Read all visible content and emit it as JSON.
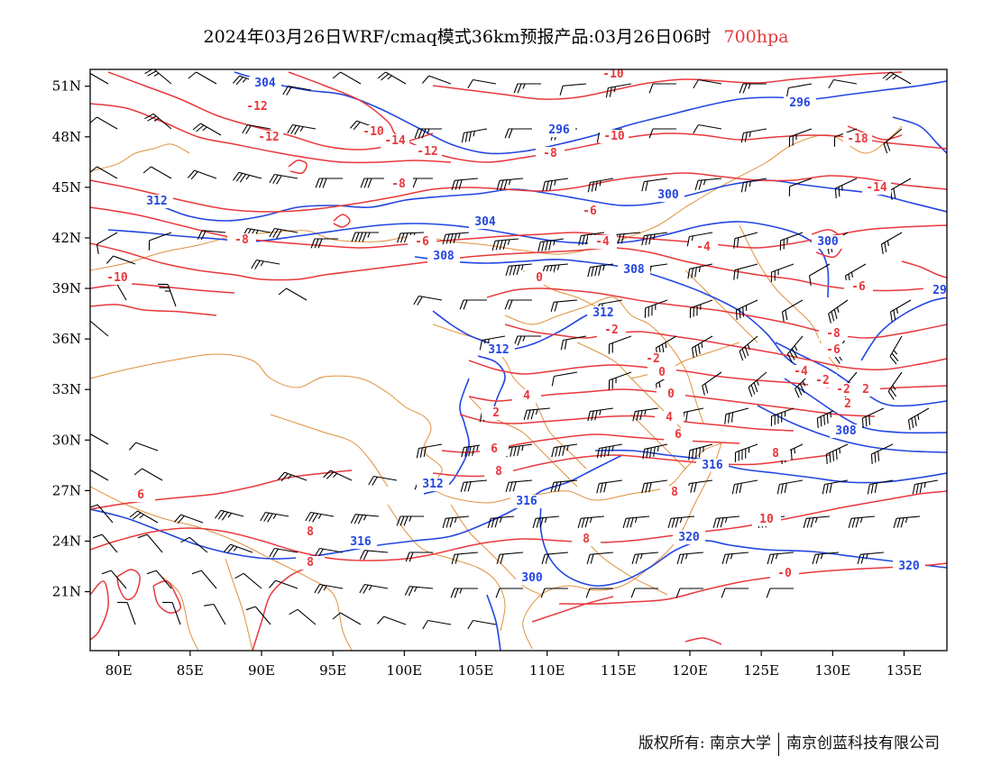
{
  "title": {
    "main": "2024年03月26日WRF/cmaq模式36km预报产品:03月26日06时",
    "level": "700hpa"
  },
  "axes": {
    "lon_labels": [
      "80E",
      "85E",
      "90E",
      "95E",
      "100E",
      "105E",
      "110E",
      "115E",
      "120E",
      "125E",
      "130E",
      "135E"
    ],
    "lat_labels": [
      "51N",
      "48N",
      "45N",
      "42N",
      "39N",
      "36N",
      "33N",
      "30N",
      "27N",
      "24N",
      "21N"
    ]
  },
  "map": {
    "lon_range": [
      78,
      138
    ],
    "lat_range": [
      17.5,
      52
    ],
    "colors": {
      "temperature": "#e8383c",
      "height": "#2346e0",
      "boundary": "#e0903c",
      "wind": "#000000"
    }
  },
  "temperature_labels": [
    "-12",
    "-12",
    "-10",
    "-14",
    "-12",
    "-10",
    "-10",
    "-8",
    "-18",
    "-14",
    "-8",
    "-6",
    "-8",
    "-6",
    "-4",
    "-4",
    "-6",
    "-10",
    "0",
    "-2",
    "-2",
    "-8",
    "-6",
    "-4",
    "-2",
    "0",
    "-2",
    "2",
    "0",
    "2",
    "4",
    "4",
    "6",
    "6",
    "8",
    "8",
    "6",
    "8",
    "8",
    "8",
    "10",
    "8",
    "-0",
    "2"
  ],
  "height_labels": [
    "304",
    "296",
    "296",
    "300",
    "312",
    "304",
    "300",
    "308",
    "308",
    "312",
    "312",
    "312",
    "308",
    "316",
    "316",
    "316",
    "320",
    "320",
    "300",
    "29"
  ],
  "footer": {
    "copyright": "版权所有: 南京大学",
    "company": "南京创蓝科技有限公司"
  }
}
